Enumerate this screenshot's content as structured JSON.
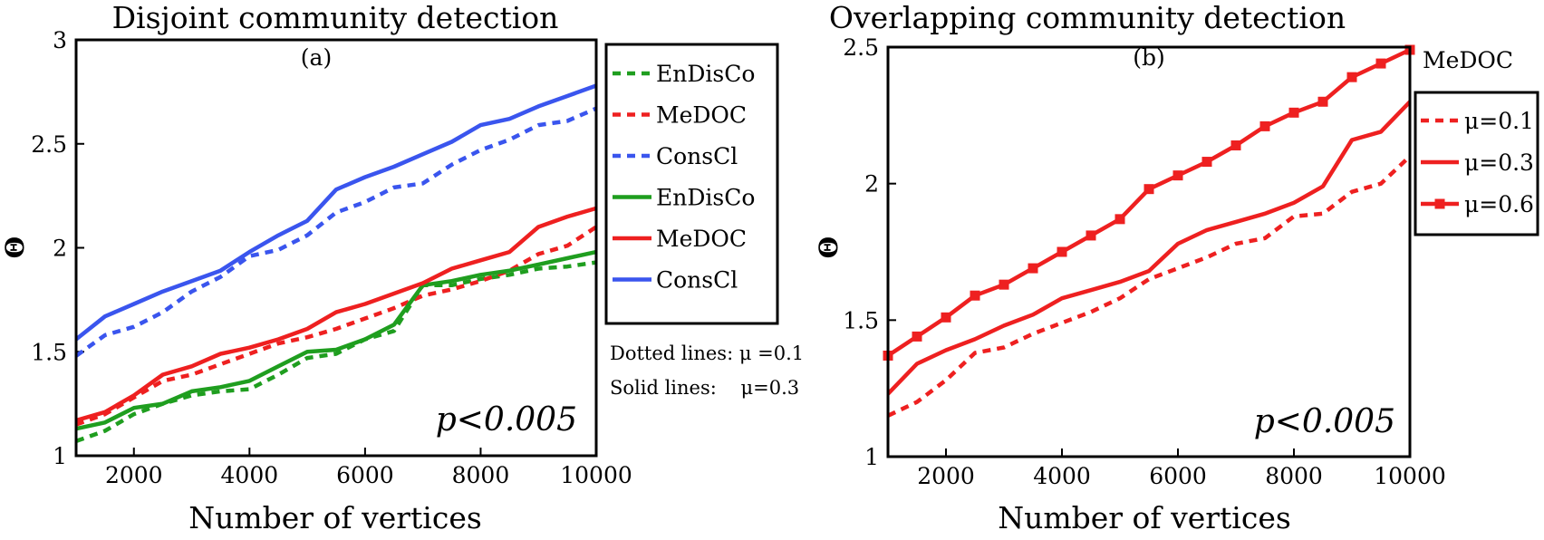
{
  "chart_data": [
    {
      "type": "line",
      "title": "Disjoint community detection",
      "panel_label": "(a)",
      "xlabel": "Number of vertices",
      "ylabel": "Θ",
      "xlim": [
        1000,
        10000
      ],
      "ylim": [
        1,
        3
      ],
      "xticks": [
        2000,
        4000,
        6000,
        8000,
        10000
      ],
      "yticks": [
        1,
        1.5,
        2,
        2.5,
        3
      ],
      "x": [
        1000,
        1500,
        2000,
        2500,
        3000,
        3500,
        4000,
        4500,
        5000,
        5500,
        6000,
        6500,
        7000,
        7500,
        8000,
        8500,
        9000,
        9500,
        10000
      ],
      "annotation": "p<0.005",
      "notes": [
        "Dotted lines: μ =0.1",
        "Solid lines:    μ=0.3"
      ],
      "series": [
        {
          "name": "EnDisCo",
          "style": "dotted",
          "color": "#1f9e1f",
          "values": [
            1.07,
            1.12,
            1.2,
            1.25,
            1.29,
            1.31,
            1.32,
            1.39,
            1.47,
            1.49,
            1.56,
            1.6,
            1.82,
            1.82,
            1.85,
            1.87,
            1.9,
            1.91,
            1.93
          ]
        },
        {
          "name": "MeDOC",
          "style": "dotted",
          "color": "#ee2020",
          "values": [
            1.15,
            1.2,
            1.28,
            1.36,
            1.39,
            1.44,
            1.49,
            1.54,
            1.57,
            1.61,
            1.66,
            1.71,
            1.77,
            1.8,
            1.84,
            1.89,
            1.97,
            2.01,
            2.1
          ]
        },
        {
          "name": "ConsCl",
          "style": "dotted",
          "color": "#3a55ee",
          "values": [
            1.48,
            1.58,
            1.62,
            1.69,
            1.79,
            1.86,
            1.96,
            1.99,
            2.06,
            2.17,
            2.22,
            2.29,
            2.31,
            2.4,
            2.47,
            2.52,
            2.59,
            2.61,
            2.67
          ]
        },
        {
          "name": "EnDisCo",
          "style": "solid",
          "color": "#1f9e1f",
          "values": [
            1.13,
            1.16,
            1.23,
            1.25,
            1.31,
            1.33,
            1.36,
            1.43,
            1.5,
            1.51,
            1.56,
            1.63,
            1.82,
            1.84,
            1.87,
            1.89,
            1.92,
            1.95,
            1.98
          ]
        },
        {
          "name": "MeDOC",
          "style": "solid",
          "color": "#ee2020",
          "values": [
            1.17,
            1.21,
            1.29,
            1.39,
            1.43,
            1.49,
            1.52,
            1.56,
            1.61,
            1.69,
            1.73,
            1.78,
            1.83,
            1.9,
            1.94,
            1.98,
            2.1,
            2.15,
            2.19
          ]
        },
        {
          "name": "ConsCl",
          "style": "solid",
          "color": "#3a55ee",
          "values": [
            1.56,
            1.67,
            1.73,
            1.79,
            1.84,
            1.89,
            1.98,
            2.06,
            2.13,
            2.28,
            2.34,
            2.39,
            2.45,
            2.51,
            2.59,
            2.62,
            2.68,
            2.73,
            2.78
          ]
        }
      ]
    },
    {
      "type": "line",
      "title": "Overlapping community detection",
      "panel_label": "(b)",
      "xlabel": "Number of vertices",
      "ylabel": "Θ",
      "xlim": [
        1000,
        10000
      ],
      "ylim": [
        1,
        2.5
      ],
      "xticks": [
        2000,
        4000,
        6000,
        8000,
        10000
      ],
      "yticks": [
        1,
        1.5,
        2,
        2.5
      ],
      "x": [
        1000,
        1500,
        2000,
        2500,
        3000,
        3500,
        4000,
        4500,
        5000,
        5500,
        6000,
        6500,
        7000,
        7500,
        8000,
        8500,
        9000,
        9500,
        10000
      ],
      "annotation": "p<0.005",
      "legend_title": "MeDOC",
      "series": [
        {
          "name": "μ=0.1",
          "style": "dotted",
          "color": "#ee2020",
          "values": [
            1.15,
            1.2,
            1.28,
            1.38,
            1.4,
            1.45,
            1.49,
            1.53,
            1.58,
            1.65,
            1.69,
            1.73,
            1.78,
            1.8,
            1.88,
            1.89,
            1.97,
            2.0,
            2.1
          ]
        },
        {
          "name": "μ=0.3",
          "style": "solid",
          "color": "#ee2020",
          "values": [
            1.23,
            1.34,
            1.39,
            1.43,
            1.48,
            1.52,
            1.58,
            1.61,
            1.64,
            1.68,
            1.78,
            1.83,
            1.86,
            1.89,
            1.93,
            1.99,
            2.16,
            2.19,
            2.3
          ]
        },
        {
          "name": "μ=0.6",
          "style": "solid-square",
          "color": "#ee2020",
          "values": [
            1.37,
            1.44,
            1.51,
            1.59,
            1.63,
            1.69,
            1.75,
            1.81,
            1.87,
            1.98,
            2.03,
            2.08,
            2.14,
            2.21,
            2.26,
            2.3,
            2.39,
            2.44,
            2.49
          ]
        }
      ]
    }
  ]
}
